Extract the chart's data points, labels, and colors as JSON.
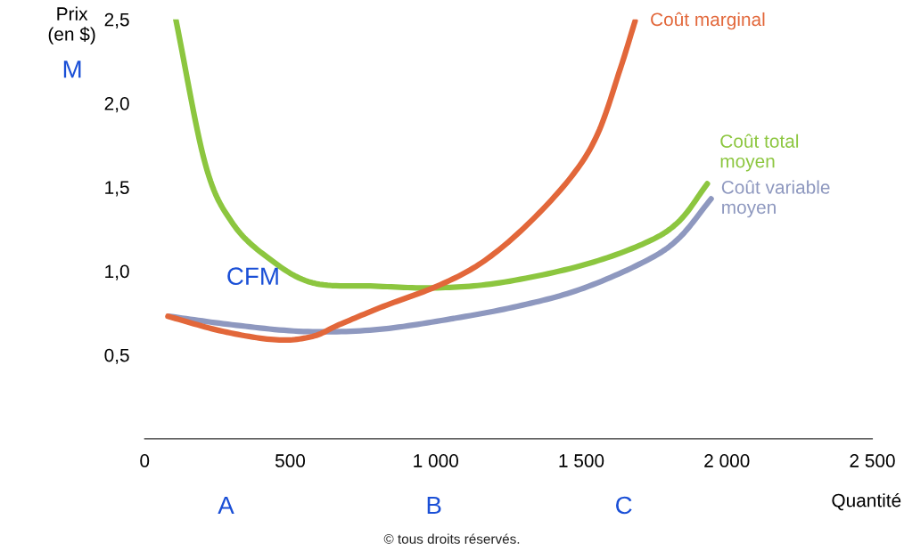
{
  "chart_data": {
    "type": "line",
    "ylabel": "Prix\n(en $)",
    "xlabel": "Quantité",
    "xlim": [
      0,
      2500
    ],
    "ylim": [
      0,
      2.5
    ],
    "xticks": [
      0,
      500,
      {
        "value": 1000,
        "label": "1 000"
      },
      {
        "value": 1500,
        "label": "1 500"
      },
      {
        "value": 2000,
        "label": "2 000"
      },
      {
        "value": 2500,
        "label": "2 500"
      }
    ],
    "yticks": [
      {
        "value": 0.5,
        "label": "0,5"
      },
      {
        "value": 1.0,
        "label": "1,0"
      },
      {
        "value": 1.5,
        "label": "1,5"
      },
      {
        "value": 2.0,
        "label": "2,0"
      },
      {
        "value": 2.5,
        "label": "2,5"
      }
    ],
    "grid": false,
    "legend": false,
    "marker": "none",
    "line_style": "solid",
    "series": [
      {
        "name": "Coût total\nmoyen",
        "color": "#8cc63f",
        "x": [
          107,
          208,
          300,
          423,
          576,
          790,
          1005,
          1220,
          1495,
          1710,
          1832,
          1933
        ],
        "values": [
          2.5,
          1.64,
          1.29,
          1.08,
          0.93,
          0.91,
          0.9,
          0.93,
          1.03,
          1.16,
          1.29,
          1.52
        ]
      },
      {
        "name": "Coût variable\nmoyen",
        "color": "#8e98bf",
        "x": [
          86,
          300,
          545,
          790,
          1036,
          1281,
          1495,
          1710,
          1832,
          1946
        ],
        "values": [
          0.73,
          0.68,
          0.64,
          0.65,
          0.71,
          0.79,
          0.89,
          1.05,
          1.19,
          1.43
        ]
      },
      {
        "name": "Coût marginal",
        "color": "#e2673a",
        "x": [
          80,
          270,
          453,
          576,
          668,
          821,
          1005,
          1158,
          1311,
          1465,
          1557,
          1633,
          1685
        ],
        "values": [
          0.73,
          0.64,
          0.59,
          0.61,
          0.68,
          0.79,
          0.91,
          1.05,
          1.27,
          1.56,
          1.82,
          2.2,
          2.49
        ]
      }
    ],
    "annotations": [
      "© tous droits réservés.",
      "CFM",
      "A",
      "B",
      "C",
      "M"
    ]
  }
}
